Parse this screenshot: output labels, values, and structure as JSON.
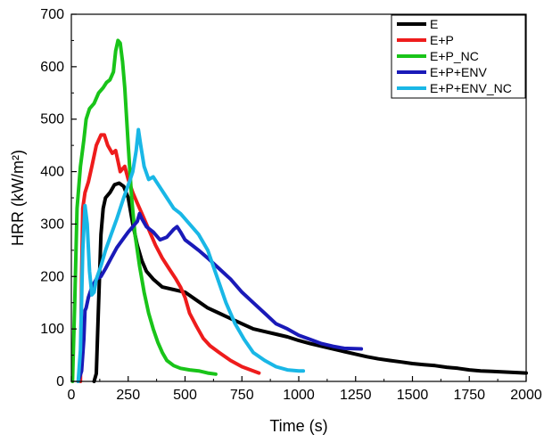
{
  "chart_data": {
    "type": "line",
    "title": "",
    "xlabel": "Time (s)",
    "ylabel": "HRR (kW/m²)",
    "xlim": [
      0,
      2000
    ],
    "ylim": [
      0,
      700
    ],
    "xticks": [
      "0",
      "250",
      "500",
      "750",
      "1000",
      "1250",
      "1500",
      "1750",
      "2000"
    ],
    "yticks": [
      "0",
      "100",
      "200",
      "300",
      "400",
      "500",
      "600",
      "700"
    ],
    "grid": false,
    "legend_position": "top-right",
    "series": [
      {
        "name": "E",
        "color": "#000000",
        "points": [
          [
            100,
            0
          ],
          [
            110,
            15
          ],
          [
            120,
            150
          ],
          [
            130,
            280
          ],
          [
            140,
            330
          ],
          [
            150,
            350
          ],
          [
            170,
            360
          ],
          [
            190,
            375
          ],
          [
            210,
            378
          ],
          [
            230,
            372
          ],
          [
            250,
            350
          ],
          [
            270,
            300
          ],
          [
            290,
            260
          ],
          [
            310,
            230
          ],
          [
            330,
            210
          ],
          [
            360,
            195
          ],
          [
            400,
            180
          ],
          [
            450,
            175
          ],
          [
            500,
            170
          ],
          [
            550,
            155
          ],
          [
            600,
            140
          ],
          [
            650,
            130
          ],
          [
            700,
            120
          ],
          [
            750,
            110
          ],
          [
            800,
            100
          ],
          [
            850,
            95
          ],
          [
            900,
            90
          ],
          [
            950,
            85
          ],
          [
            1000,
            78
          ],
          [
            1050,
            72
          ],
          [
            1100,
            67
          ],
          [
            1150,
            62
          ],
          [
            1200,
            57
          ],
          [
            1250,
            52
          ],
          [
            1300,
            47
          ],
          [
            1350,
            43
          ],
          [
            1400,
            40
          ],
          [
            1450,
            37
          ],
          [
            1500,
            34
          ],
          [
            1550,
            32
          ],
          [
            1600,
            30
          ],
          [
            1650,
            27
          ],
          [
            1700,
            25
          ],
          [
            1750,
            22
          ],
          [
            1800,
            20
          ],
          [
            1850,
            19
          ],
          [
            1900,
            18
          ],
          [
            1950,
            17
          ],
          [
            2000,
            16
          ]
        ]
      },
      {
        "name": "E+P",
        "color": "#ee1c1c",
        "points": [
          [
            40,
            0
          ],
          [
            45,
            200
          ],
          [
            50,
            330
          ],
          [
            60,
            360
          ],
          [
            75,
            380
          ],
          [
            90,
            410
          ],
          [
            110,
            450
          ],
          [
            130,
            470
          ],
          [
            145,
            470
          ],
          [
            160,
            450
          ],
          [
            180,
            435
          ],
          [
            195,
            440
          ],
          [
            205,
            420
          ],
          [
            215,
            400
          ],
          [
            235,
            410
          ],
          [
            250,
            385
          ],
          [
            270,
            360
          ],
          [
            290,
            340
          ],
          [
            310,
            320
          ],
          [
            340,
            290
          ],
          [
            370,
            260
          ],
          [
            400,
            235
          ],
          [
            430,
            215
          ],
          [
            460,
            195
          ],
          [
            480,
            180
          ],
          [
            500,
            160
          ],
          [
            520,
            130
          ],
          [
            550,
            105
          ],
          [
            580,
            82
          ],
          [
            610,
            68
          ],
          [
            650,
            55
          ],
          [
            700,
            40
          ],
          [
            750,
            28
          ],
          [
            800,
            20
          ],
          [
            825,
            16
          ]
        ]
      },
      {
        "name": "E+P_NC",
        "color": "#19c419",
        "points": [
          [
            5,
            0
          ],
          [
            15,
            150
          ],
          [
            25,
            330
          ],
          [
            40,
            410
          ],
          [
            55,
            460
          ],
          [
            65,
            500
          ],
          [
            80,
            520
          ],
          [
            100,
            530
          ],
          [
            120,
            550
          ],
          [
            140,
            560
          ],
          [
            155,
            570
          ],
          [
            170,
            575
          ],
          [
            185,
            590
          ],
          [
            195,
            630
          ],
          [
            205,
            650
          ],
          [
            215,
            645
          ],
          [
            225,
            610
          ],
          [
            235,
            560
          ],
          [
            250,
            450
          ],
          [
            265,
            350
          ],
          [
            280,
            280
          ],
          [
            300,
            220
          ],
          [
            320,
            170
          ],
          [
            340,
            130
          ],
          [
            360,
            100
          ],
          [
            380,
            75
          ],
          [
            400,
            55
          ],
          [
            420,
            40
          ],
          [
            450,
            30
          ],
          [
            480,
            25
          ],
          [
            520,
            22
          ],
          [
            560,
            20
          ],
          [
            600,
            16
          ],
          [
            635,
            14
          ]
        ]
      },
      {
        "name": "E+P+ENV",
        "color": "#1a1ab8",
        "points": [
          [
            30,
            0
          ],
          [
            45,
            20
          ],
          [
            55,
            80
          ],
          [
            60,
            135
          ],
          [
            65,
            140
          ],
          [
            75,
            160
          ],
          [
            90,
            180
          ],
          [
            110,
            195
          ],
          [
            130,
            200
          ],
          [
            150,
            215
          ],
          [
            175,
            235
          ],
          [
            200,
            255
          ],
          [
            225,
            270
          ],
          [
            250,
            285
          ],
          [
            270,
            295
          ],
          [
            290,
            305
          ],
          [
            300,
            320
          ],
          [
            310,
            310
          ],
          [
            330,
            295
          ],
          [
            360,
            285
          ],
          [
            390,
            270
          ],
          [
            420,
            275
          ],
          [
            450,
            290
          ],
          [
            465,
            295
          ],
          [
            480,
            285
          ],
          [
            500,
            270
          ],
          [
            530,
            260
          ],
          [
            560,
            250
          ],
          [
            600,
            235
          ],
          [
            650,
            215
          ],
          [
            700,
            195
          ],
          [
            750,
            170
          ],
          [
            800,
            150
          ],
          [
            850,
            130
          ],
          [
            900,
            110
          ],
          [
            950,
            100
          ],
          [
            1000,
            88
          ],
          [
            1050,
            80
          ],
          [
            1100,
            72
          ],
          [
            1150,
            67
          ],
          [
            1200,
            63
          ],
          [
            1275,
            62
          ]
        ]
      },
      {
        "name": "E+P+ENV_NC",
        "color": "#19b7e6",
        "points": [
          [
            30,
            0
          ],
          [
            40,
            60
          ],
          [
            50,
            250
          ],
          [
            60,
            335
          ],
          [
            70,
            300
          ],
          [
            80,
            210
          ],
          [
            90,
            165
          ],
          [
            100,
            170
          ],
          [
            110,
            195
          ],
          [
            130,
            220
          ],
          [
            150,
            250
          ],
          [
            175,
            280
          ],
          [
            200,
            310
          ],
          [
            230,
            350
          ],
          [
            255,
            380
          ],
          [
            270,
            400
          ],
          [
            285,
            440
          ],
          [
            295,
            480
          ],
          [
            305,
            450
          ],
          [
            320,
            410
          ],
          [
            340,
            385
          ],
          [
            360,
            390
          ],
          [
            390,
            370
          ],
          [
            420,
            350
          ],
          [
            450,
            330
          ],
          [
            480,
            320
          ],
          [
            520,
            300
          ],
          [
            560,
            280
          ],
          [
            600,
            250
          ],
          [
            640,
            200
          ],
          [
            680,
            150
          ],
          [
            720,
            110
          ],
          [
            760,
            80
          ],
          [
            800,
            55
          ],
          [
            850,
            40
          ],
          [
            900,
            28
          ],
          [
            950,
            22
          ],
          [
            1000,
            20
          ],
          [
            1020,
            20
          ]
        ]
      }
    ]
  }
}
